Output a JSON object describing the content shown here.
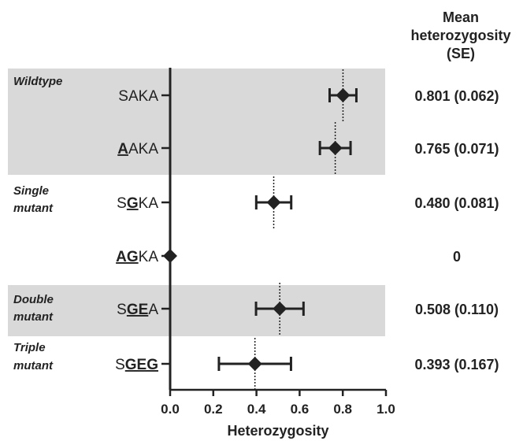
{
  "chart_data": {
    "type": "forest",
    "column_header": [
      "Mean",
      "heterozygosity",
      "(SE)"
    ],
    "xlabel": "Heterozygosity",
    "xlim": [
      0.0,
      1.0
    ],
    "xticks": [
      "0.0",
      "0.2",
      "0.4",
      "0.6",
      "0.8",
      "1.0"
    ],
    "groups": [
      {
        "label_lines": [
          "Wildtype"
        ],
        "shaded": true,
        "rows": [
          0,
          1
        ]
      },
      {
        "label_lines": [
          "Single",
          "mutant"
        ],
        "shaded": false,
        "rows": [
          2,
          3
        ]
      },
      {
        "label_lines": [
          "Double",
          "mutant"
        ],
        "shaded": true,
        "rows": [
          4
        ]
      },
      {
        "label_lines": [
          "Triple",
          "mutant"
        ],
        "shaded": false,
        "rows": [
          5
        ]
      }
    ],
    "rows": [
      {
        "label": "SAKA",
        "segments": [
          {
            "t": "SAKA",
            "hl": false
          }
        ],
        "mean": 0.801,
        "se": 0.062,
        "value_text": "0.801 (0.062)"
      },
      {
        "label": "AAKA",
        "segments": [
          {
            "t": "A",
            "hl": true
          },
          {
            "t": "AKA",
            "hl": false
          }
        ],
        "mean": 0.765,
        "se": 0.071,
        "value_text": "0.765 (0.071)"
      },
      {
        "label": "SGKA",
        "segments": [
          {
            "t": "S",
            "hl": false
          },
          {
            "t": "G",
            "hl": true
          },
          {
            "t": "KA",
            "hl": false
          }
        ],
        "mean": 0.48,
        "se": 0.081,
        "value_text": "0.480 (0.081)"
      },
      {
        "label": "AGKA",
        "segments": [
          {
            "t": "AG",
            "hl": true
          },
          {
            "t": "KA",
            "hl": false
          }
        ],
        "mean": 0.0,
        "se": 0.0,
        "value_text": "0"
      },
      {
        "label": "SGEA",
        "segments": [
          {
            "t": "S",
            "hl": false
          },
          {
            "t": "GE",
            "hl": true
          },
          {
            "t": "A",
            "hl": false
          }
        ],
        "mean": 0.508,
        "se": 0.11,
        "value_text": "0.508 (0.110)"
      },
      {
        "label": "SGEG",
        "segments": [
          {
            "t": "S",
            "hl": false
          },
          {
            "t": "GEG",
            "hl": true
          }
        ],
        "mean": 0.393,
        "se": 0.167,
        "value_text": "0.393 (0.167)"
      }
    ],
    "colors": {
      "band": "#d9d9d9",
      "marks": "#222222"
    }
  }
}
